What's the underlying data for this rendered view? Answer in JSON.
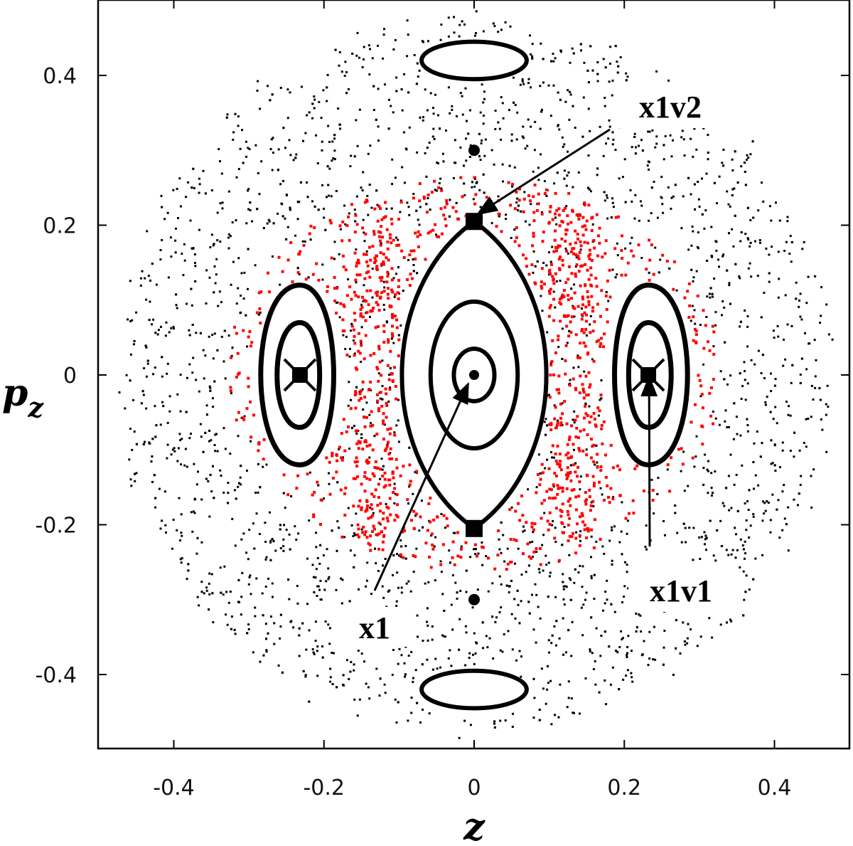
{
  "chart_data": {
    "type": "scatter",
    "title": "",
    "xlabel": "z",
    "ylabel": {
      "main": "p",
      "sub": "z"
    },
    "xlim": [
      -0.5,
      0.5
    ],
    "ylim": [
      -0.5,
      0.5
    ],
    "x_ticks": [
      {
        "value": -0.4,
        "label": "-0.4"
      },
      {
        "value": -0.2,
        "label": "-0.2"
      },
      {
        "value": 0,
        "label": "0"
      },
      {
        "value": 0.2,
        "label": "0.2"
      },
      {
        "value": 0.4,
        "label": "0.4"
      }
    ],
    "y_ticks": [
      {
        "value": 0.4,
        "label": "0.4"
      },
      {
        "value": 0.2,
        "label": "0.2"
      },
      {
        "value": 0,
        "label": "0"
      },
      {
        "value": -0.2,
        "label": "-0.2"
      },
      {
        "value": -0.4,
        "label": "-0.4"
      }
    ],
    "grid": false,
    "legend": "none",
    "colors": {
      "chaotic_black": "#000000",
      "chaotic_red": "#ff0000",
      "invariant_curves": "#000000"
    },
    "series": [
      {
        "color": "#000000",
        "kind": "chaotic sea",
        "region": {
          "z_range": [
            -0.49,
            0.49
          ],
          "pz_range": [
            -0.49,
            0.49
          ],
          "outer_radius": 0.49
        }
      },
      {
        "color": "#ff0000",
        "kind": "chaotic layer",
        "region": {
          "inner_radius": 0.17,
          "outer_radius": 0.33
        }
      }
    ],
    "invariant_curves": [
      {
        "group": "x1",
        "center": [
          0,
          0
        ],
        "radii": [
          [
            0.027,
            0.035
          ],
          [
            0.058,
            0.098
          ]
        ]
      },
      {
        "group": "x1",
        "separatrix": true,
        "half_width": 0.095,
        "tips": [
          [
            0,
            0.205
          ],
          [
            0,
            -0.205
          ]
        ]
      },
      {
        "group": "x1v1-left",
        "center": [
          -0.232,
          0
        ],
        "radii": [
          [
            0.028,
            0.07
          ],
          [
            0.048,
            0.12
          ]
        ]
      },
      {
        "group": "x1v1-right",
        "center": [
          0.232,
          0
        ],
        "radii": [
          [
            0.028,
            0.07
          ],
          [
            0.048,
            0.12
          ]
        ]
      },
      {
        "group": "top-island",
        "center": [
          0,
          0.42
        ],
        "radii": [
          [
            0.07,
            0.025
          ]
        ]
      },
      {
        "group": "bottom-island",
        "center": [
          0,
          -0.42
        ],
        "radii": [
          [
            0.07,
            0.025
          ]
        ]
      }
    ],
    "fixed_points": [
      {
        "name": "x1",
        "z": 0,
        "pz": 0
      },
      {
        "name": "x1v1",
        "z": 0.232,
        "pz": 0
      },
      {
        "name": "x1v1",
        "z": -0.232,
        "pz": 0
      },
      {
        "name": "x1v2",
        "z": 0,
        "pz": 0.205
      },
      {
        "name": "x1v2",
        "z": 0,
        "pz": -0.205
      },
      {
        "name": "",
        "z": 0,
        "pz": 0.3
      },
      {
        "name": "",
        "z": 0,
        "pz": -0.3
      }
    ],
    "annotations": [
      {
        "text": "x1v2",
        "arrow_to": [
          0.005,
          0.215
        ]
      },
      {
        "text": "x1",
        "arrow_to": [
          -0.008,
          -0.012
        ]
      },
      {
        "text": "x1v1",
        "arrow_to": [
          0.233,
          -0.003
        ]
      }
    ]
  }
}
